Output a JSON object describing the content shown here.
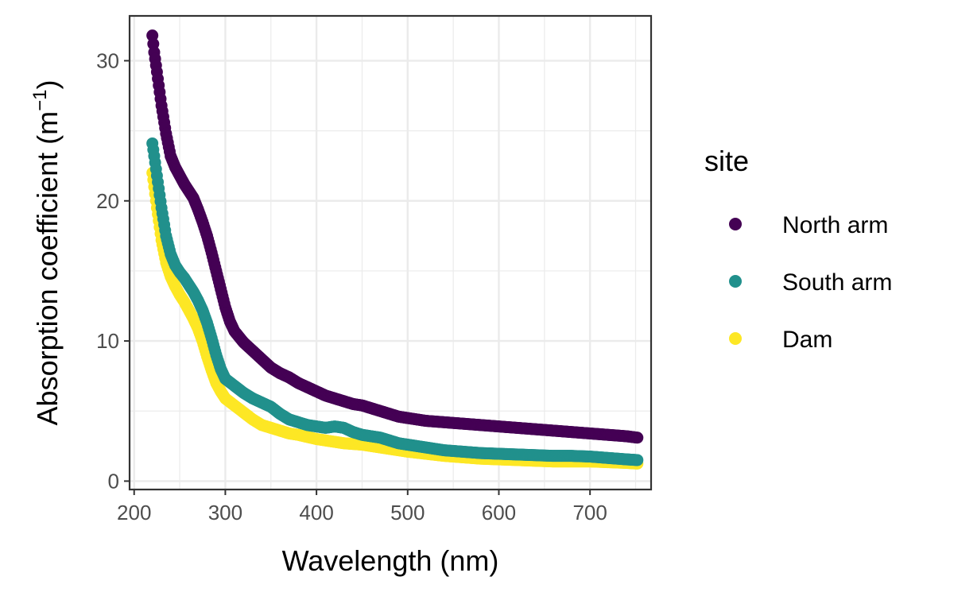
{
  "chart_data": {
    "type": "scatter",
    "xlabel": "Wavelength (nm)",
    "ylabel": {
      "text": "Absorption coefficient (m",
      "superscript": "−1",
      "suffix": ")"
    },
    "xlim": [
      195,
      767
    ],
    "ylim": [
      -0.6,
      33.2
    ],
    "x_ticks": [
      200,
      300,
      400,
      500,
      600,
      700
    ],
    "x_tick_labels": [
      "200",
      "300",
      "400",
      "500",
      "600",
      "700"
    ],
    "y_ticks": [
      0,
      10,
      20,
      30
    ],
    "y_tick_labels": [
      "0",
      "10",
      "20",
      "30"
    ],
    "grid": true,
    "legend": {
      "title": "site",
      "placement": "right"
    },
    "series": [
      {
        "name": "North arm",
        "color": "#440154",
        "points": [
          [
            220,
            31.8
          ],
          [
            222,
            30.6
          ],
          [
            225,
            29.2
          ],
          [
            230,
            26.8
          ],
          [
            235,
            24.8
          ],
          [
            240,
            23.2
          ],
          [
            245,
            22.4
          ],
          [
            250,
            21.8
          ],
          [
            255,
            21.2
          ],
          [
            260,
            20.7
          ],
          [
            265,
            20.2
          ],
          [
            270,
            19.4
          ],
          [
            275,
            18.5
          ],
          [
            280,
            17.5
          ],
          [
            285,
            16.3
          ],
          [
            290,
            15.0
          ],
          [
            295,
            13.7
          ],
          [
            300,
            12.4
          ],
          [
            305,
            11.4
          ],
          [
            310,
            10.7
          ],
          [
            320,
            9.9
          ],
          [
            330,
            9.3
          ],
          [
            340,
            8.7
          ],
          [
            350,
            8.1
          ],
          [
            360,
            7.7
          ],
          [
            370,
            7.4
          ],
          [
            380,
            7.0
          ],
          [
            390,
            6.7
          ],
          [
            400,
            6.4
          ],
          [
            410,
            6.1
          ],
          [
            420,
            5.9
          ],
          [
            430,
            5.7
          ],
          [
            440,
            5.5
          ],
          [
            450,
            5.4
          ],
          [
            460,
            5.2
          ],
          [
            470,
            5.0
          ],
          [
            480,
            4.8
          ],
          [
            490,
            4.6
          ],
          [
            500,
            4.5
          ],
          [
            520,
            4.3
          ],
          [
            540,
            4.2
          ],
          [
            560,
            4.1
          ],
          [
            580,
            4.0
          ],
          [
            600,
            3.9
          ],
          [
            620,
            3.8
          ],
          [
            640,
            3.7
          ],
          [
            660,
            3.6
          ],
          [
            680,
            3.5
          ],
          [
            700,
            3.4
          ],
          [
            720,
            3.3
          ],
          [
            740,
            3.2
          ],
          [
            752,
            3.1
          ]
        ]
      },
      {
        "name": "South arm",
        "color": "#21908C",
        "points": [
          [
            220,
            24.1
          ],
          [
            222,
            23.2
          ],
          [
            225,
            21.8
          ],
          [
            230,
            19.5
          ],
          [
            235,
            17.5
          ],
          [
            240,
            16.2
          ],
          [
            245,
            15.4
          ],
          [
            250,
            14.9
          ],
          [
            255,
            14.5
          ],
          [
            260,
            14.0
          ],
          [
            265,
            13.5
          ],
          [
            270,
            12.9
          ],
          [
            275,
            12.2
          ],
          [
            280,
            11.3
          ],
          [
            285,
            10.2
          ],
          [
            290,
            9.0
          ],
          [
            295,
            8.0
          ],
          [
            300,
            7.3
          ],
          [
            310,
            6.8
          ],
          [
            320,
            6.3
          ],
          [
            330,
            5.9
          ],
          [
            340,
            5.6
          ],
          [
            350,
            5.3
          ],
          [
            360,
            4.8
          ],
          [
            370,
            4.4
          ],
          [
            380,
            4.2
          ],
          [
            390,
            4.0
          ],
          [
            400,
            3.9
          ],
          [
            410,
            3.8
          ],
          [
            420,
            3.9
          ],
          [
            430,
            3.8
          ],
          [
            440,
            3.5
          ],
          [
            450,
            3.3
          ],
          [
            460,
            3.2
          ],
          [
            470,
            3.1
          ],
          [
            480,
            2.9
          ],
          [
            490,
            2.7
          ],
          [
            500,
            2.6
          ],
          [
            520,
            2.4
          ],
          [
            540,
            2.2
          ],
          [
            560,
            2.1
          ],
          [
            580,
            2.0
          ],
          [
            600,
            1.95
          ],
          [
            620,
            1.9
          ],
          [
            640,
            1.85
          ],
          [
            660,
            1.8
          ],
          [
            680,
            1.8
          ],
          [
            700,
            1.75
          ],
          [
            720,
            1.65
          ],
          [
            740,
            1.55
          ],
          [
            752,
            1.5
          ]
        ]
      },
      {
        "name": "Dam",
        "color": "#FDE725",
        "points": [
          [
            220,
            22.0
          ],
          [
            222,
            21.0
          ],
          [
            225,
            19.5
          ],
          [
            230,
            17.2
          ],
          [
            235,
            15.6
          ],
          [
            240,
            14.6
          ],
          [
            245,
            13.9
          ],
          [
            250,
            13.3
          ],
          [
            255,
            12.8
          ],
          [
            260,
            12.2
          ],
          [
            265,
            11.6
          ],
          [
            270,
            10.9
          ],
          [
            275,
            10.0
          ],
          [
            280,
            8.9
          ],
          [
            285,
            7.9
          ],
          [
            290,
            7.0
          ],
          [
            295,
            6.4
          ],
          [
            300,
            5.9
          ],
          [
            310,
            5.4
          ],
          [
            320,
            4.9
          ],
          [
            330,
            4.4
          ],
          [
            340,
            4.0
          ],
          [
            350,
            3.8
          ],
          [
            360,
            3.6
          ],
          [
            370,
            3.4
          ],
          [
            380,
            3.3
          ],
          [
            390,
            3.15
          ],
          [
            400,
            3.0
          ],
          [
            410,
            2.9
          ],
          [
            420,
            2.8
          ],
          [
            430,
            2.7
          ],
          [
            440,
            2.65
          ],
          [
            450,
            2.6
          ],
          [
            460,
            2.5
          ],
          [
            470,
            2.4
          ],
          [
            480,
            2.3
          ],
          [
            490,
            2.2
          ],
          [
            500,
            2.1
          ],
          [
            520,
            1.95
          ],
          [
            540,
            1.8
          ],
          [
            560,
            1.7
          ],
          [
            580,
            1.6
          ],
          [
            600,
            1.55
          ],
          [
            620,
            1.5
          ],
          [
            640,
            1.45
          ],
          [
            660,
            1.4
          ],
          [
            680,
            1.4
          ],
          [
            700,
            1.4
          ],
          [
            720,
            1.35
          ],
          [
            740,
            1.3
          ],
          [
            752,
            1.25
          ]
        ]
      }
    ]
  }
}
